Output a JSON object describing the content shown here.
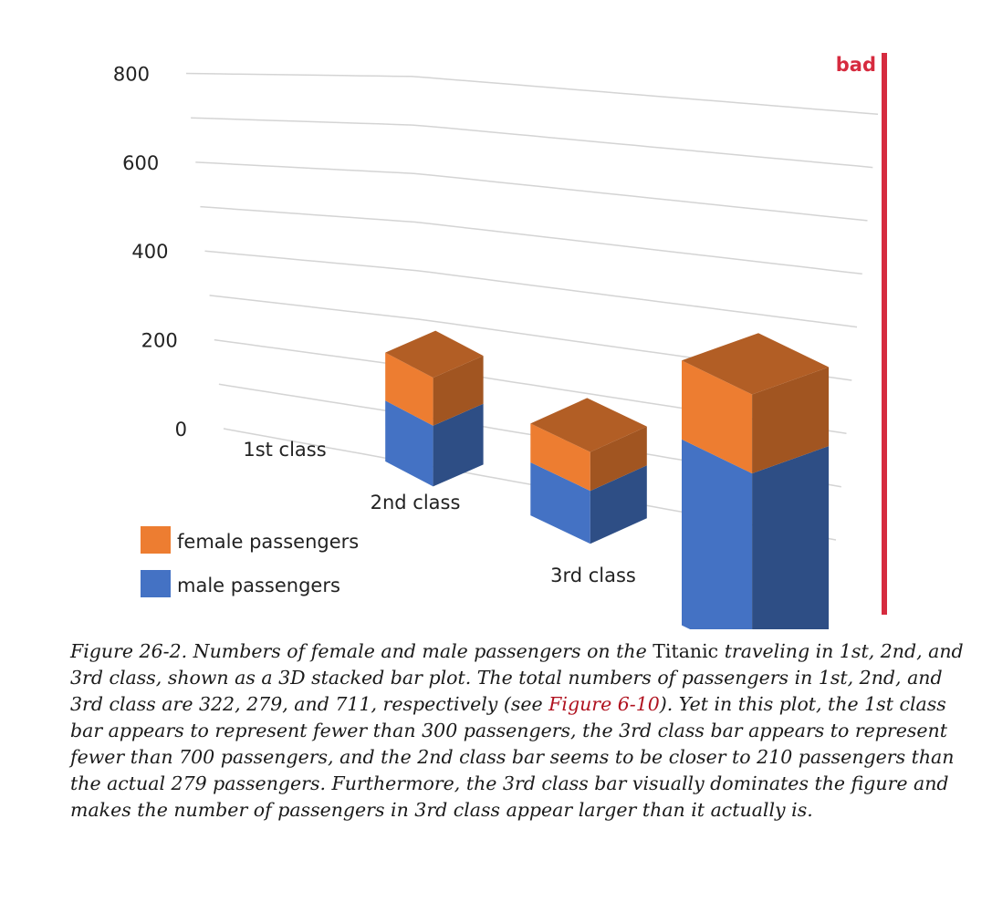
{
  "verdict": {
    "label": "bad",
    "color": "#d62b3f"
  },
  "chart_data": {
    "type": "bar",
    "stacked": true,
    "three_d": true,
    "categories": [
      "1st class",
      "2nd class",
      "3rd class"
    ],
    "series": [
      {
        "name": "male passengers",
        "values": [
          180,
          161,
          499
        ],
        "color": "#4472c4"
      },
      {
        "name": "female passengers",
        "values": [
          142,
          118,
          212
        ],
        "color": "#ed7d31"
      }
    ],
    "totals": [
      322,
      279,
      711
    ],
    "y_ticks": [
      "0",
      "200",
      "400",
      "600",
      "800"
    ],
    "ylim": [
      0,
      800
    ],
    "grid": true,
    "legend_position": "bottom-left",
    "title": "",
    "xlabel": "",
    "ylabel": ""
  },
  "caption": {
    "part1": "Figure 26-2. Numbers of female and male passengers on the ",
    "upright": "Titanic",
    "part2": " traveling in 1st, 2nd, and 3rd class, shown as a 3D stacked bar plot. The total numbers of passengers in 1st, 2nd, and 3rd class are 322, 279, and 711, respectively (see ",
    "link": "Figure 6-10",
    "part3": "). Yet in this plot, the 1st class bar appears to represent fewer than 300 passengers, the 3rd class bar appears to represent fewer than 700 passengers, and the 2nd class bar seems to be closer to 210 passengers than the actual 279 passengers. Furthermore, the 3rd class bar visually dominates the figure and makes the number of passengers in 3rd class appear larger than it actually is."
  }
}
